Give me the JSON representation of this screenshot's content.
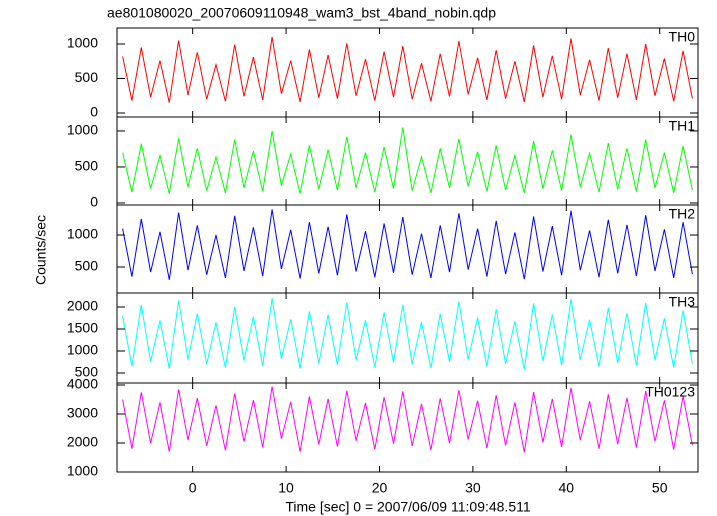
{
  "chart_data": {
    "type": "line",
    "title": "ae801080020_20070609110948_wam3_bst_4band_nobin.qdp",
    "ylabel": "Counts/sec",
    "xlabel": "Time [sec] 0 = 2007/06/09 11:09:48.511",
    "xlim": [
      -8.1,
      54.1
    ],
    "xticks": [
      0,
      10,
      20,
      30,
      40,
      50
    ],
    "x": [
      -7.5,
      -6.5,
      -5.5,
      -4.5,
      -3.5,
      -2.5,
      -1.5,
      -0.5,
      0.5,
      1.5,
      2.5,
      3.5,
      4.5,
      5.5,
      6.5,
      7.5,
      8.5,
      9.5,
      10.5,
      11.5,
      12.5,
      13.5,
      14.5,
      15.5,
      16.5,
      17.5,
      18.5,
      19.5,
      20.5,
      21.5,
      22.5,
      23.5,
      24.5,
      25.5,
      26.5,
      27.5,
      28.5,
      29.5,
      30.5,
      31.5,
      32.5,
      33.5,
      34.5,
      35.5,
      36.5,
      37.5,
      38.5,
      39.5,
      40.5,
      41.5,
      42.5,
      43.5,
      44.5,
      45.5,
      46.5,
      47.5,
      48.5,
      49.5,
      50.5,
      51.5,
      52.5,
      53.5
    ],
    "panels": [
      {
        "ylim": [
          -58,
          1232
        ],
        "yticks": [
          0,
          500,
          1000
        ],
        "series": [
          {
            "name": "TH0",
            "color": "#ff0000",
            "values": [
              820,
              180,
              950,
              230,
              760,
              150,
              1050,
              260,
              880,
              200,
              700,
              170,
              990,
              240,
              810,
              190,
              1100,
              280,
              760,
              160,
              920,
              220,
              840,
              210,
              1010,
              250,
              780,
              180,
              890,
              230,
              970,
              200,
              720,
              170,
              860,
              240,
              1040,
              270,
              800,
              190,
              910,
              210,
              750,
              160,
              980,
              230,
              830,
              200,
              1080,
              260,
              770,
              180,
              940,
              220,
              860,
              190,
              1000,
              250,
              790,
              170,
              900,
              210
            ]
          }
        ]
      },
      {
        "ylim": [
          -28,
          1194
        ],
        "yticks": [
          0,
          500,
          1000
        ],
        "series": [
          {
            "name": "TH1",
            "color": "#00ff00",
            "values": [
              700,
              150,
              820,
              200,
              660,
              130,
              900,
              220,
              760,
              170,
              640,
              140,
              880,
              210,
              720,
              160,
              1000,
              240,
              680,
              130,
              800,
              190,
              740,
              180,
              920,
              210,
              700,
              150,
              780,
              200,
              1050,
              170,
              640,
              140,
              760,
              210,
              890,
              230,
              710,
              160,
              800,
              180,
              660,
              140,
              860,
              200,
              730,
              170,
              950,
              220,
              690,
              150,
              830,
              190,
              760,
              160,
              880,
              210,
              700,
              140,
              790,
              180
            ]
          }
        ]
      },
      {
        "ylim": [
          94,
          1469
        ],
        "yticks": [
          500,
          1000
        ],
        "series": [
          {
            "name": "TH2",
            "color": "#0000ff",
            "values": [
              1100,
              350,
              1250,
              420,
              1050,
              300,
              1350,
              450,
              1150,
              380,
              1000,
              330,
              1300,
              440,
              1120,
              360,
              1400,
              470,
              1080,
              320,
              1200,
              400,
              1130,
              370,
              1320,
              430,
              1060,
              340,
              1180,
              410,
              1280,
              380,
              1020,
              330,
              1150,
              420,
              1340,
              460,
              1100,
              350,
              1220,
              390,
              1040,
              310,
              1290,
              430,
              1140,
              370,
              1380,
              450,
              1070,
              340,
              1240,
              400,
              1160,
              360,
              1310,
              440,
              1090,
              330,
              1200,
              390
            ]
          }
        ]
      },
      {
        "ylim": [
          273,
          2318
        ],
        "yticks": [
          500,
          1000,
          1500,
          2000
        ],
        "series": [
          {
            "name": "TH3",
            "color": "#00ffff",
            "values": [
              1800,
              650,
              2050,
              760,
              1700,
              600,
              2150,
              800,
              1850,
              700,
              1650,
              620,
              2000,
              780,
              1780,
              660,
              2200,
              820,
              1720,
              600,
              1900,
              720,
              1820,
              690,
              2100,
              790,
              1700,
              630,
              1880,
              740,
              2050,
              700,
              1660,
              610,
              1840,
              760,
              2120,
              810,
              1760,
              650,
              1950,
              710,
              1680,
              580,
              2080,
              770,
              1830,
              680,
              2180,
              800,
              1710,
              640,
              1980,
              730,
              1860,
              670,
              2090,
              790,
              1740,
              620,
              1920,
              710
            ]
          }
        ]
      },
      {
        "ylim": [
          1000,
          4069
        ],
        "yticks": [
          1000,
          2000,
          3000,
          4000
        ],
        "series": [
          {
            "name": "TH0123",
            "color": "#ff00ff",
            "values": [
              3500,
              1800,
              3750,
              2000,
              3400,
              1700,
              3850,
              2100,
              3550,
              1900,
              3300,
              1750,
              3700,
              2050,
              3480,
              1850,
              3950,
              2150,
              3420,
              1700,
              3600,
              1950,
              3520,
              1880,
              3800,
              2080,
              3380,
              1780,
              3580,
              1980,
              3780,
              1900,
              3350,
              1760,
              3540,
              2000,
              3820,
              2120,
              3460,
              1820,
              3650,
              1920,
              3400,
              1680,
              3760,
              2020,
              3520,
              1860,
              3900,
              2100,
              3440,
              1800,
              3680,
              1960,
              3560,
              1840,
              3790,
              2060,
              3470,
              1770,
              3620,
              1920
            ]
          }
        ]
      }
    ]
  }
}
